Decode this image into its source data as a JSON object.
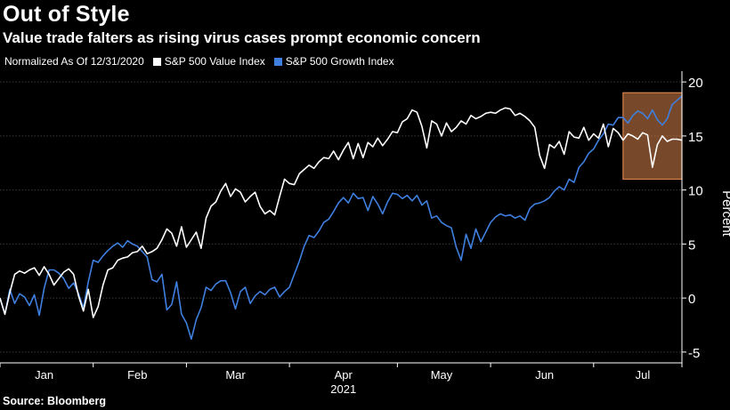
{
  "title": "Out of Style",
  "subtitle": "Value trade falters as rising virus cases prompt economic concern",
  "legend": {
    "note": "Normalized As Of 12/31/2020",
    "items": [
      {
        "label": "S&P 500 Value Index",
        "color": "#ffffff"
      },
      {
        "label": "S&P 500 Growth Index",
        "color": "#3f7fdf"
      }
    ]
  },
  "source": "Source: Bloomberg",
  "chart_data": {
    "type": "line",
    "xlabel": "2021",
    "ylabel": "Percent",
    "ylim": [
      -6,
      21
    ],
    "yticks": [
      -5,
      0,
      5,
      10,
      15,
      20
    ],
    "xlim": [
      0,
      139
    ],
    "month_labels": [
      {
        "label": "Jan",
        "pos": 9
      },
      {
        "label": "Feb",
        "pos": 28
      },
      {
        "label": "Feb",
        "pos": 28
      },
      {
        "label": "Mar",
        "pos": 48
      },
      {
        "label": "Apr",
        "pos": 70
      },
      {
        "label": "May",
        "pos": 90
      },
      {
        "label": "Jun",
        "pos": 111
      },
      {
        "label": "Jul",
        "pos": 131
      }
    ],
    "month_ticks": [
      0,
      19,
      38,
      59,
      81,
      100,
      121,
      139
    ],
    "grid": true,
    "highlight": {
      "x": [
        127,
        139
      ],
      "y": [
        11,
        19
      ],
      "color": "#d9834a"
    },
    "series": [
      {
        "name": "S&P 500 Value Index",
        "color": "#ffffff",
        "values": [
          0,
          -1.5,
          0.5,
          2.2,
          2.5,
          2.3,
          2.6,
          2.8,
          2.1,
          2.9,
          2.2,
          1.2,
          1.8,
          2.4,
          2.7,
          2.2,
          0.2,
          -1.2,
          0.8,
          -1.8,
          -0.8,
          1.2,
          2.6,
          2.8,
          3.5,
          3.7,
          3.8,
          4.2,
          4.3,
          4.8,
          4.1,
          4.3,
          4.6,
          5.4,
          6.4,
          6.0,
          4.8,
          6.6,
          4.7,
          5.4,
          6.1,
          4.6,
          7.4,
          8.5,
          8.9,
          9.9,
          10.6,
          9.4,
          10.1,
          9.8,
          8.9,
          9.4,
          9.8,
          8.5,
          7.8,
          8.1,
          7.7,
          9.4,
          11.0,
          10.6,
          10.5,
          11.5,
          11.9,
          12.3,
          12.0,
          12.6,
          13.0,
          12.9,
          13.6,
          12.8,
          13.7,
          14.4,
          12.9,
          14.3,
          13.0,
          14.4,
          14.0,
          14.8,
          14.1,
          14.7,
          15.4,
          15.3,
          16.3,
          16.6,
          17.4,
          17.2,
          15.9,
          13.9,
          16.4,
          16.1,
          15.0,
          16.2,
          15.4,
          15.8,
          16.4,
          16.1,
          16.9,
          16.6,
          16.8,
          17.1,
          17.2,
          17.1,
          17.4,
          17.6,
          17.5,
          16.9,
          17.1,
          16.8,
          16.4,
          15.8,
          13.2,
          12.0,
          14.2,
          13.9,
          14.5,
          13.3,
          15.4,
          14.9,
          14.8,
          15.8,
          14.6,
          15.2,
          14.8,
          16.1,
          14.0,
          15.7,
          15.3,
          14.6,
          15.2,
          15.0,
          14.7,
          15.3,
          15.1,
          12.1,
          14.2,
          15.0,
          14.5,
          14.7,
          14.7,
          14.6
        ]
      },
      {
        "name": "S&P 500 Growth Index",
        "color": "#3f7fdf",
        "values": [
          0,
          -1.5,
          0.8,
          -0.5,
          0.4,
          0.1,
          -0.7,
          0.3,
          -1.6,
          0.9,
          2.6,
          2.6,
          2.3,
          1.8,
          0.9,
          1.4,
          0.4,
          -0.9,
          1.5,
          3.5,
          3.3,
          3.9,
          4.4,
          4.8,
          5.1,
          4.7,
          5.3,
          5.0,
          4.8,
          4.3,
          3.8,
          1.7,
          1.5,
          2.2,
          -1.1,
          -0.6,
          1.5,
          -1.5,
          -2.3,
          -3.8,
          -2.0,
          -0.9,
          1.0,
          0.7,
          1.3,
          1.6,
          1.6,
          0.5,
          -1.0,
          0.6,
          1.0,
          -0.5,
          0.2,
          0.6,
          0.3,
          0.8,
          1.0,
          0.1,
          0.6,
          1.0,
          2.2,
          3.4,
          4.8,
          5.8,
          5.6,
          6.2,
          7.0,
          7.3,
          8.0,
          8.8,
          9.3,
          8.8,
          9.7,
          9.2,
          9.3,
          8.1,
          9.4,
          8.7,
          7.8,
          8.9,
          9.7,
          9.6,
          9.2,
          9.5,
          9.0,
          9.5,
          8.6,
          9.0,
          7.4,
          7.6,
          7.0,
          6.7,
          6.5,
          4.7,
          3.5,
          5.9,
          4.6,
          6.4,
          5.2,
          6.1,
          7.0,
          7.5,
          7.8,
          7.6,
          7.7,
          7.4,
          7.6,
          7.2,
          8.3,
          8.7,
          8.8,
          9.0,
          9.3,
          9.9,
          10.3,
          10.0,
          11.0,
          10.7,
          12.1,
          12.6,
          13.4,
          13.8,
          14.6,
          15.2,
          16.1,
          16.0,
          16.7,
          16.7,
          16.2,
          16.9,
          17.3,
          17.1,
          16.6,
          17.4,
          16.5,
          16.0,
          16.6,
          17.9,
          18.3,
          18.7
        ]
      }
    ]
  }
}
